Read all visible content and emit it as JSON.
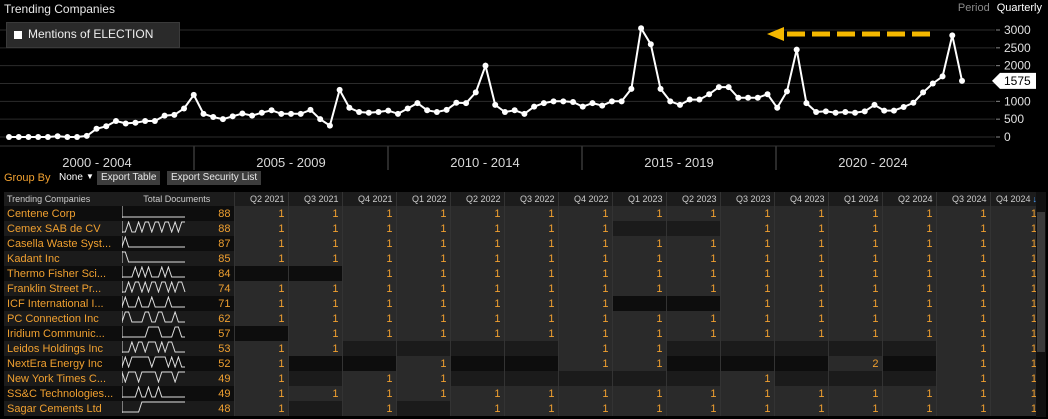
{
  "app": {
    "title": "Trending Companies"
  },
  "period": {
    "label": "Period",
    "value": "Quarterly"
  },
  "legend": {
    "label": "Mentions of ELECTION"
  },
  "current_value_badge": "1575",
  "colors": {
    "accent": "#f0a030",
    "arrow": "#f5b800",
    "line": "#ffffff"
  },
  "chart_data": {
    "type": "line",
    "series": [
      {
        "name": "Mentions of ELECTION",
        "values": [
          0,
          0,
          0,
          0,
          0,
          20,
          0,
          0,
          30,
          230,
          300,
          450,
          380,
          400,
          450,
          450,
          600,
          620,
          800,
          1180,
          650,
          560,
          500,
          580,
          660,
          600,
          680,
          750,
          650,
          650,
          650,
          760,
          500,
          320,
          1320,
          820,
          700,
          680,
          700,
          740,
          650,
          800,
          950,
          750,
          700,
          760,
          960,
          950,
          1250,
          2000,
          900,
          700,
          750,
          650,
          850,
          950,
          1000,
          1000,
          980,
          850,
          950,
          880,
          1000,
          1000,
          1350,
          3050,
          2600,
          1350,
          1000,
          900,
          1050,
          1050,
          1200,
          1400,
          1400,
          1100,
          1100,
          1100,
          1200,
          820,
          1280,
          2450,
          950,
          700,
          720,
          680,
          700,
          680,
          720,
          900,
          740,
          740,
          840,
          960,
          1250,
          1500,
          1700,
          2850,
          1575
        ]
      }
    ],
    "x_period_labels": [
      "2000 - 2004",
      "2005 - 2009",
      "2010 - 2014",
      "2015 - 2019",
      "2020 - 2024"
    ],
    "y_ticks": [
      "0",
      "500",
      "1000",
      "1500",
      "2000",
      "2500",
      "3000"
    ],
    "ylim": [
      0,
      3000
    ],
    "y_axis_position": "right",
    "grid": true
  },
  "toolbar": {
    "group_by_label": "Group By",
    "group_by_value": "None",
    "export_table_label": "Export Table",
    "export_security_label": "Export Security List"
  },
  "table": {
    "col_company": "Trending Companies",
    "col_total": "Total Documents",
    "quarters": [
      "Q2 2021",
      "Q3 2021",
      "Q4 2021",
      "Q1 2022",
      "Q2 2022",
      "Q3 2022",
      "Q4 2022",
      "Q1 2023",
      "Q2 2023",
      "Q3 2023",
      "Q4 2023",
      "Q1 2024",
      "Q2 2024",
      "Q3 2024",
      "Q4 2024"
    ],
    "rows": [
      {
        "name": "Centene Corp",
        "total": "88",
        "cells": [
          "1",
          "1",
          "1",
          "1",
          "1",
          "1",
          "1",
          "1",
          "1",
          "1",
          "1",
          "1",
          "1",
          "1",
          "1"
        ],
        "spark": [
          0,
          0,
          0,
          0,
          0,
          0,
          0,
          0,
          0,
          0,
          0,
          0,
          0,
          0,
          0,
          0,
          0,
          0,
          0,
          0
        ]
      },
      {
        "name": "Cemex SAB de CV",
        "total": "88",
        "cells": [
          "1",
          "1",
          "1",
          "1",
          "1",
          "1",
          "1",
          "",
          "",
          "1",
          "1",
          "1",
          "1",
          "1",
          "1"
        ],
        "spark": [
          0,
          0,
          1,
          0,
          0,
          1,
          0,
          1,
          1,
          0,
          1,
          1,
          0,
          1,
          1,
          0,
          1,
          0,
          1,
          1
        ]
      },
      {
        "name": "Casella Waste Syst...",
        "total": "87",
        "cells": [
          "1",
          "1",
          "1",
          "1",
          "1",
          "1",
          "1",
          "1",
          "1",
          "1",
          "1",
          "1",
          "1",
          "1",
          "1"
        ],
        "spark": [
          0,
          1,
          0,
          0,
          0,
          0,
          0,
          0,
          0,
          0,
          0,
          0,
          0,
          0,
          0,
          0,
          0,
          0,
          0,
          0
        ]
      },
      {
        "name": "Kadant Inc",
        "total": "85",
        "cells": [
          "1",
          "1",
          "1",
          "1",
          "1",
          "1",
          "1",
          "1",
          "1",
          "1",
          "1",
          "1",
          "1",
          "1",
          "1"
        ],
        "spark": [
          1,
          1,
          0,
          0,
          0,
          0,
          0,
          0,
          0,
          0,
          0,
          0,
          0,
          0,
          0,
          0,
          0,
          0,
          0,
          0
        ]
      },
      {
        "name": "Thermo Fisher Sci...",
        "total": "84",
        "cells": [
          "",
          "",
          "1",
          "1",
          "1",
          "1",
          "1",
          "1",
          "1",
          "1",
          "1",
          "1",
          "1",
          "1",
          "1"
        ],
        "spark": [
          0,
          0,
          0,
          0,
          1,
          0,
          1,
          0,
          1,
          0,
          0,
          0,
          1,
          0,
          1,
          0,
          0,
          0,
          0,
          0
        ]
      },
      {
        "name": "Franklin Street Pr...",
        "total": "74",
        "cells": [
          "1",
          "1",
          "1",
          "1",
          "1",
          "1",
          "1",
          "1",
          "1",
          "1",
          "1",
          "1",
          "1",
          "1",
          "1"
        ],
        "spark": [
          0,
          0,
          1,
          0,
          1,
          1,
          0,
          1,
          0,
          1,
          1,
          0,
          1,
          1,
          0,
          1,
          0,
          1,
          1,
          0
        ]
      },
      {
        "name": "ICF International I...",
        "total": "71",
        "cells": [
          "1",
          "1",
          "1",
          "1",
          "1",
          "1",
          "1",
          "",
          "",
          "1",
          "1",
          "1",
          "1",
          "1",
          "1"
        ],
        "spark": [
          0,
          1,
          0,
          0,
          0,
          1,
          0,
          0,
          0,
          1,
          0,
          0,
          0,
          0,
          1,
          0,
          0,
          0,
          0,
          0
        ]
      },
      {
        "name": "PC Connection Inc",
        "total": "62",
        "cells": [
          "1",
          "1",
          "1",
          "1",
          "1",
          "1",
          "1",
          "1",
          "1",
          "1",
          "1",
          "1",
          "1",
          "1",
          "1"
        ],
        "spark": [
          0,
          1,
          1,
          0,
          0,
          0,
          0,
          1,
          1,
          0,
          0,
          1,
          1,
          0,
          0,
          0,
          1,
          0,
          0,
          0
        ]
      },
      {
        "name": "Iridium Communic...",
        "total": "57",
        "cells": [
          "",
          "1",
          "1",
          "1",
          "1",
          "1",
          "1",
          "1",
          "1",
          "1",
          "1",
          "1",
          "1",
          "1",
          "1"
        ],
        "spark": [
          0,
          0,
          0,
          0,
          0,
          0,
          0,
          0,
          1,
          1,
          1,
          1,
          0,
          0,
          0,
          0,
          1,
          1,
          0,
          0
        ]
      },
      {
        "name": "Leidos Holdings Inc",
        "total": "53",
        "cells": [
          "1",
          "1",
          "",
          "",
          "",
          "",
          "1",
          "1",
          "",
          "",
          "",
          "",
          "",
          "1",
          "1"
        ],
        "spark": [
          0,
          0,
          0,
          1,
          0,
          1,
          1,
          0,
          1,
          1,
          1,
          0,
          1,
          0,
          1,
          1,
          0,
          0,
          0,
          0
        ]
      },
      {
        "name": "NextEra Energy Inc",
        "total": "52",
        "cells": [
          "1",
          "",
          "",
          "1",
          "",
          "",
          "1",
          "1",
          "",
          "",
          "",
          "2",
          "",
          "1",
          "1"
        ],
        "spark": [
          0,
          1,
          0,
          1,
          1,
          1,
          1,
          1,
          1,
          0,
          1,
          1,
          1,
          1,
          0,
          1,
          0,
          1,
          0,
          0
        ]
      },
      {
        "name": "New York Times C...",
        "total": "49",
        "cells": [
          "1",
          "",
          "1",
          "1",
          "",
          "",
          "",
          "",
          "",
          "1",
          "",
          "",
          "",
          "1",
          "1"
        ],
        "spark": [
          1,
          0,
          1,
          1,
          1,
          0,
          1,
          1,
          1,
          1,
          1,
          0,
          1,
          1,
          1,
          1,
          0,
          1,
          1,
          1
        ]
      },
      {
        "name": "SS&C Technologies...",
        "total": "49",
        "cells": [
          "1",
          "1",
          "1",
          "1",
          "1",
          "1",
          "1",
          "1",
          "1",
          "1",
          "1",
          "1",
          "1",
          "1",
          "1"
        ],
        "spark": [
          0,
          0,
          0,
          0,
          0,
          1,
          0,
          0,
          1,
          0,
          0,
          1,
          0,
          0,
          0,
          0,
          0,
          0,
          0,
          0
        ]
      },
      {
        "name": "Sagar Cements Ltd",
        "total": "48",
        "cells": [
          "1",
          "",
          "1",
          "",
          "1",
          "1",
          "1",
          "1",
          "1",
          "1",
          "1",
          "1",
          "1",
          "1",
          "1"
        ],
        "spark": [
          0,
          0,
          0,
          0,
          0,
          0,
          1,
          1,
          1,
          1,
          1,
          1,
          1,
          1,
          1,
          1,
          1,
          1,
          1,
          1
        ]
      }
    ]
  }
}
